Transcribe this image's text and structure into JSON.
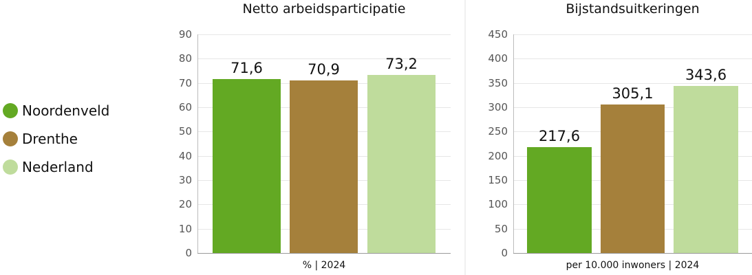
{
  "legend": [
    {
      "label": "Noordenveld",
      "color": "#63a923"
    },
    {
      "label": "Drenthe",
      "color": "#a5803b"
    },
    {
      "label": "Nederland",
      "color": "#bfdc9c"
    }
  ],
  "charts": [
    {
      "title": "Netto arbeidsparticipatie",
      "xlabel": "% | 2024",
      "yticks": [
        "0",
        "10",
        "20",
        "30",
        "40",
        "50",
        "60",
        "70",
        "80",
        "90"
      ],
      "values": [
        "71,6",
        "70,9",
        "73,2"
      ]
    },
    {
      "title": "Bijstandsuitkeringen",
      "xlabel": "per 10.000 inwoners | 2024",
      "yticks": [
        "0",
        "50",
        "100",
        "150",
        "200",
        "250",
        "300",
        "350",
        "400",
        "450"
      ],
      "values": [
        "217,6",
        "305,1",
        "343,6"
      ]
    }
  ],
  "chart_data": [
    {
      "type": "bar",
      "title": "Netto arbeidsparticipatie",
      "xlabel": "% | 2024",
      "ylabel": "",
      "categories": [
        "Noordenveld",
        "Drenthe",
        "Nederland"
      ],
      "values": [
        71.6,
        70.9,
        73.2
      ],
      "ylim": [
        0,
        90
      ],
      "yticks": [
        0,
        10,
        20,
        30,
        40,
        50,
        60,
        70,
        80,
        90
      ],
      "grid": true,
      "legend_position": "left"
    },
    {
      "type": "bar",
      "title": "Bijstandsuitkeringen",
      "xlabel": "per 10.000 inwoners | 2024",
      "ylabel": "",
      "categories": [
        "Noordenveld",
        "Drenthe",
        "Nederland"
      ],
      "values": [
        217.6,
        305.1,
        343.6
      ],
      "ylim": [
        0,
        450
      ],
      "yticks": [
        0,
        50,
        100,
        150,
        200,
        250,
        300,
        350,
        400,
        450
      ],
      "grid": true,
      "legend_position": "left"
    }
  ]
}
